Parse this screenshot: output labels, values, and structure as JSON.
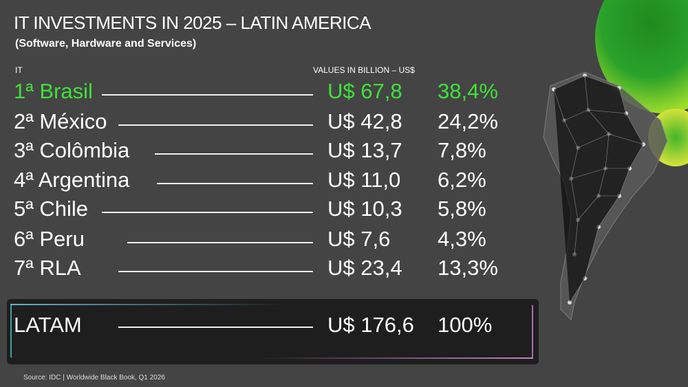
{
  "header": {
    "title": "IT INVESTMENTS IN 2025 – LATIN AMERICA",
    "subtitle": "(Software, Hardware and Services)",
    "col_label": "IT",
    "values_label": "VALUES IN BILLION – US$"
  },
  "rows": [
    {
      "name": "1ª Brasil",
      "value": "U$ 67,8",
      "pct": "38,4%"
    },
    {
      "name": "2ª México",
      "value": "U$ 42,8",
      "pct": "24,2%"
    },
    {
      "name": "3ª Colômbia",
      "value": "U$ 13,7",
      "pct": "7,8%"
    },
    {
      "name": "4ª Argentina",
      "value": "U$ 11,0",
      "pct": "6,2%"
    },
    {
      "name": "5ª Chile",
      "value": "U$ 10,3",
      "pct": "5,8%"
    },
    {
      "name": "6ª Peru",
      "value": "U$ 7,6",
      "pct": "4,3%"
    },
    {
      "name": "7ª RLA",
      "value": "U$ 23,4",
      "pct": "13,3%"
    }
  ],
  "total": {
    "name": "LATAM",
    "value": "U$ 176,6",
    "pct": "100%"
  },
  "source": "Source: IDC | Worldwide Black Book, Q1 2026",
  "colors": {
    "highlight": "#3fe23a",
    "background": "#444444"
  }
}
